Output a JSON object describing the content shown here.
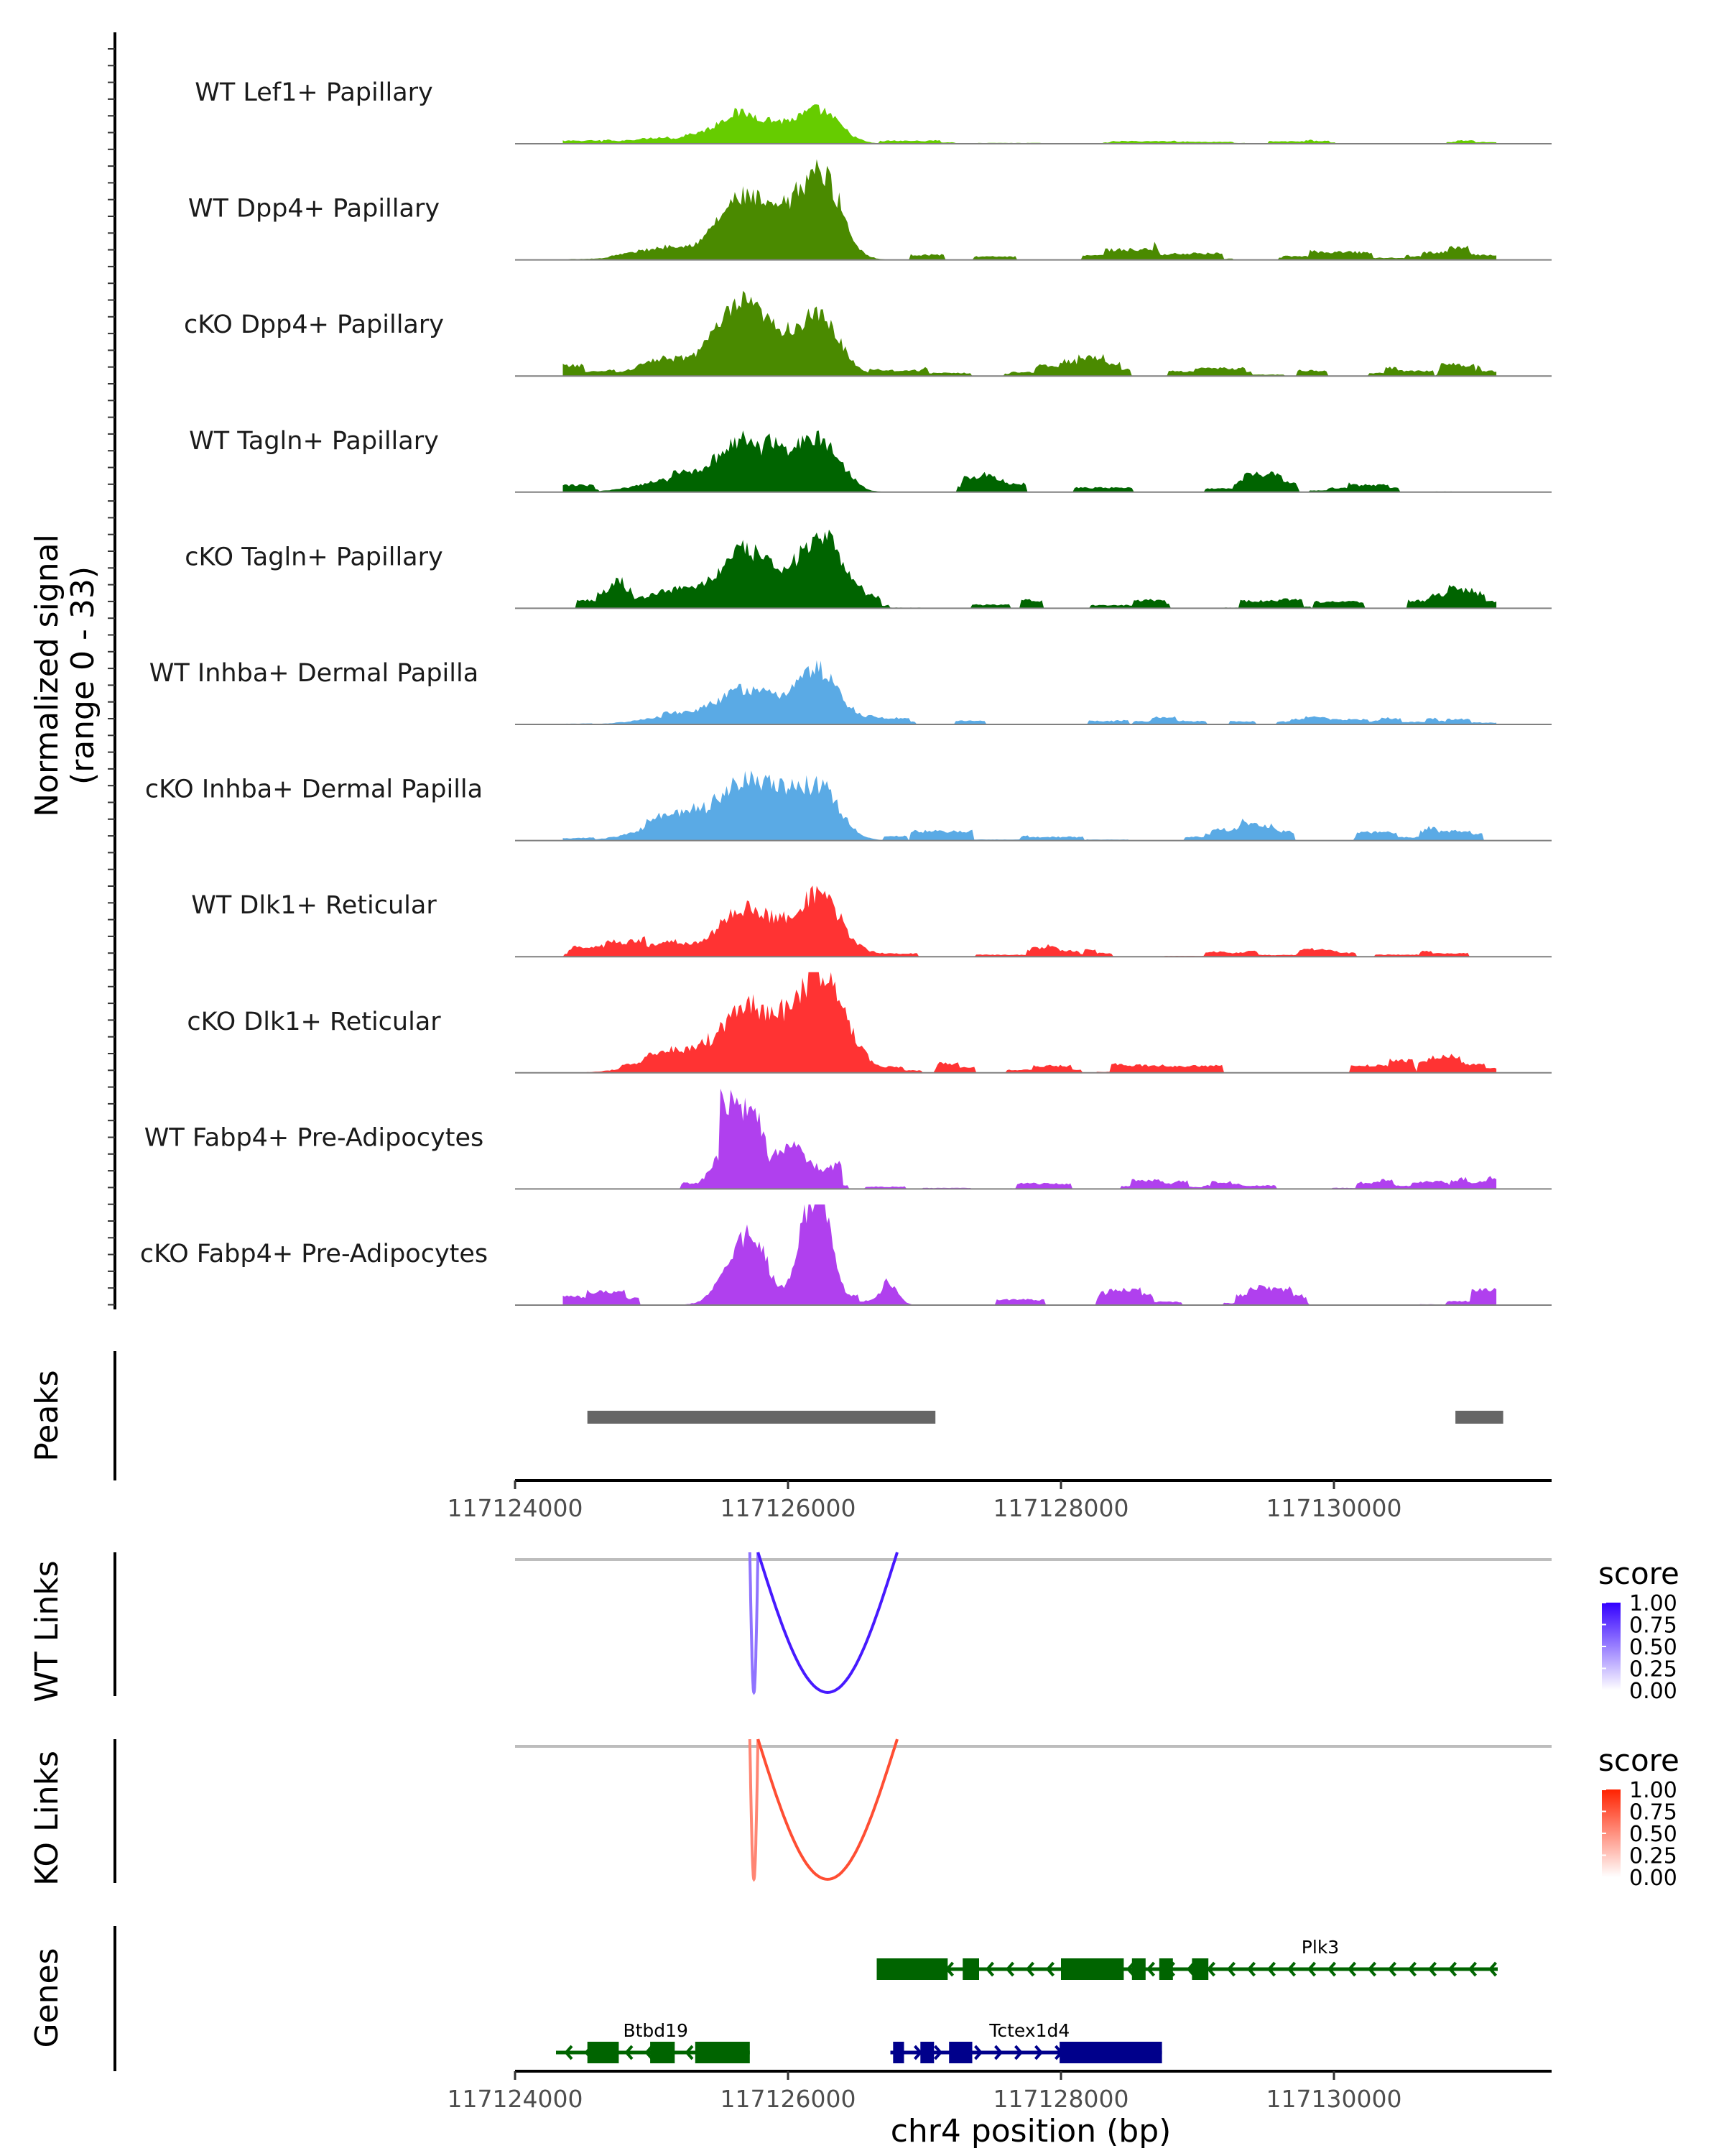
{
  "chart_data": {
    "type": "area",
    "title": "",
    "x_axis": {
      "label": "chr4 position (bp)",
      "range": [
        117124000,
        117131600
      ],
      "ticks": [
        117124000,
        117126000,
        117128000,
        117130000
      ],
      "tick_labels": [
        "117124000",
        "117126000",
        "117128000",
        "117130000"
      ]
    },
    "coverage": {
      "ylabel_line1": "Normalized signal",
      "ylabel_line2": "(range 0 - 33)",
      "y_range": [
        0,
        33
      ],
      "tracks": [
        {
          "name": "WT Lef1+ Papillary",
          "color": "#66cc00",
          "profile": "wt_lef1",
          "peak1": 9,
          "peak2": 10.5,
          "noise": 0.8
        },
        {
          "name": "WT Dpp4+ Papillary",
          "color": "#4a8a00",
          "profile": "std",
          "peak1": 18,
          "peak2": 26,
          "noise": 1.8
        },
        {
          "name": "cKO Dpp4+ Papillary",
          "color": "#4a8a00",
          "profile": "std",
          "peak1": 20,
          "peak2": 19,
          "noise": 2.5
        },
        {
          "name": "WT Tagln+ Papillary",
          "color": "#006400",
          "profile": "std",
          "peak1": 15,
          "peak2": 16,
          "noise": 2.0
        },
        {
          "name": "cKO Tagln+ Papillary",
          "color": "#006400",
          "profile": "std",
          "peak1": 16,
          "peak2": 21,
          "noise": 2.8
        },
        {
          "name": "WT Inhba+ Dermal Papilla",
          "color": "#5aaae5",
          "profile": "std",
          "peak1": 11,
          "peak2": 17,
          "noise": 1.2
        },
        {
          "name": "cKO Inhba+ Dermal Papilla",
          "color": "#5aaae5",
          "profile": "std",
          "peak1": 16,
          "peak2": 17,
          "noise": 3.0
        },
        {
          "name": "WT Dlk1+ Reticular",
          "color": "#ff3333",
          "profile": "std",
          "peak1": 15,
          "peak2": 19,
          "noise": 1.5
        },
        {
          "name": "cKO Dlk1+ Reticular",
          "color": "#ff3333",
          "profile": "std",
          "peak1": 20,
          "peak2": 33,
          "noise": 2.5
        },
        {
          "name": "WT Fabp4+ Pre-Adipocytes",
          "color": "#b040ee",
          "profile": "fabp4_wt",
          "peak1": 25,
          "peak2": 13,
          "noise": 2.0
        },
        {
          "name": "cKO Fabp4+ Pre-Adipocytes",
          "color": "#b040ee",
          "profile": "fabp4_cko",
          "peak1": 21,
          "peak2": 32,
          "noise": 2.5
        }
      ]
    },
    "peaks": {
      "label": "Peaks",
      "color": "#666666",
      "regions": [
        [
          117124530,
          117127080
        ],
        [
          117130890,
          117131240
        ]
      ]
    },
    "links": [
      {
        "label": "WT Links",
        "legend_title": "score",
        "color_high": "#3300ff",
        "legend_ticks": [
          "1.00",
          "0.75",
          "0.50",
          "0.25",
          "0.00"
        ],
        "arcs": [
          {
            "start": 117125720,
            "end": 117125780,
            "score": 0.55
          },
          {
            "start": 117125780,
            "end": 117126800,
            "score": 0.9
          }
        ]
      },
      {
        "label": "KO Links",
        "legend_title": "score",
        "color_high": "#ff2200",
        "legend_ticks": [
          "1.00",
          "0.75",
          "0.50",
          "0.25",
          "0.00"
        ],
        "arcs": [
          {
            "start": 117125720,
            "end": 117125780,
            "score": 0.55
          },
          {
            "start": 117125780,
            "end": 117126800,
            "score": 0.8
          }
        ]
      }
    ],
    "genes": {
      "label": "Genes",
      "items": [
        {
          "name": "Plk3",
          "strand": "-",
          "row": 0,
          "color": "#006400",
          "start": 117126650,
          "end": 117131200,
          "exons": [
            [
              117126650,
              117127170
            ],
            [
              117127280,
              117127400
            ],
            [
              117128000,
              117128460
            ],
            [
              117128520,
              117128620
            ],
            [
              117128720,
              117128820
            ],
            [
              117128960,
              117129080
            ]
          ],
          "label_at": 117129900
        },
        {
          "name": "Btbd19",
          "strand": "-",
          "row": 1,
          "color": "#006400",
          "start": 117124300,
          "end": 117125720,
          "exons": [
            [
              117124530,
              117124760
            ],
            [
              117124990,
              117125170
            ],
            [
              117125320,
              117125720
            ]
          ],
          "label_at": 117125030
        },
        {
          "name": "Tctex1d4",
          "strand": "+",
          "row": 1,
          "color": "#00008b",
          "start": 117126750,
          "end": 117128740,
          "exons": [
            [
              117126770,
              117126850
            ],
            [
              117126970,
              117127070
            ],
            [
              117127180,
              117127350
            ],
            [
              117127990,
              117128740
            ]
          ],
          "label_at": 117127770
        }
      ]
    }
  }
}
